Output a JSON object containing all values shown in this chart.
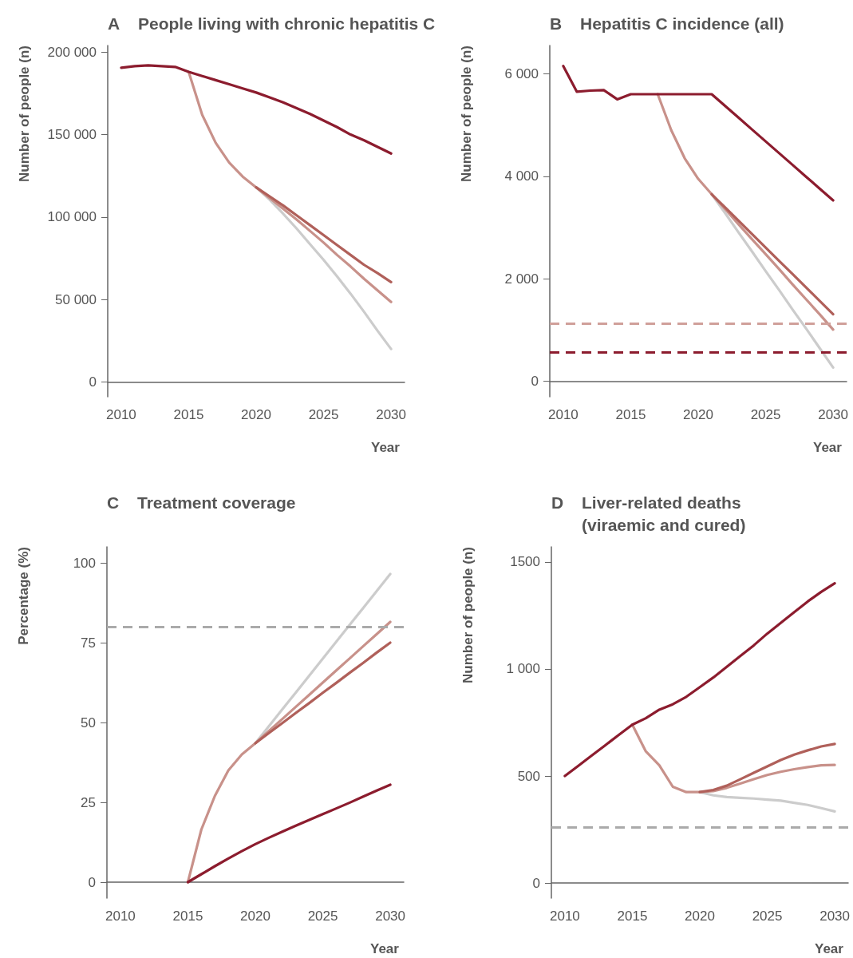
{
  "chart_data": [
    {
      "type": "line",
      "title": "A People living with chronic hepatitis C",
      "xlabel": "Year",
      "ylabel": "Number of people (n)",
      "x": [
        2010,
        2011,
        2012,
        2013,
        2014,
        2015,
        2016,
        2017,
        2018,
        2019,
        2020,
        2021,
        2022,
        2023,
        2024,
        2025,
        2026,
        2027,
        2028,
        2029,
        2030
      ],
      "xlim": [
        2009,
        2031
      ],
      "xticks": [
        2010,
        2015,
        2020,
        2025,
        2030
      ],
      "ylim": [
        -9000,
        204000
      ],
      "yticks": [
        0,
        {
          "value": 50000,
          "label": "50 000"
        },
        {
          "value": 100000,
          "label": "100 000"
        },
        {
          "value": 150000,
          "label": "150 000"
        },
        {
          "value": 200000,
          "label": "200 000"
        }
      ],
      "grid": false,
      "marker": "none",
      "line_style": "solid",
      "series": [
        {
          "color": "#cccccc",
          "values": [
            null,
            null,
            null,
            null,
            null,
            null,
            null,
            null,
            null,
            null,
            118000,
            110500,
            102000,
            93000,
            83500,
            74000,
            64000,
            53500,
            42500,
            31000,
            20000
          ]
        },
        {
          "color": "#c8918a",
          "values": [
            null,
            null,
            null,
            null,
            null,
            188000,
            162000,
            145000,
            133000,
            124500,
            118000,
            111500,
            105000,
            98500,
            91500,
            84500,
            77000,
            70000,
            62500,
            55500,
            48500
          ]
        },
        {
          "color": "#b0605a",
          "values": [
            null,
            null,
            null,
            null,
            null,
            null,
            null,
            null,
            null,
            null,
            118000,
            112500,
            107000,
            101000,
            95000,
            89000,
            83000,
            77000,
            71000,
            66000,
            60500
          ]
        },
        {
          "color": "#8c1c2e",
          "values": [
            190500,
            191500,
            192000,
            191500,
            191000,
            188000,
            185500,
            183000,
            180500,
            178000,
            175500,
            172500,
            169500,
            166000,
            162500,
            158500,
            154500,
            150000,
            146500,
            142500,
            138500
          ]
        }
      ]
    },
    {
      "type": "line",
      "title": "B Hepatitis C incidence (all)",
      "xlabel": "Year",
      "ylabel": "Number of people (n)",
      "x": [
        2010,
        2011,
        2012,
        2013,
        2014,
        2015,
        2016,
        2017,
        2018,
        2019,
        2020,
        2021,
        2022,
        2023,
        2024,
        2025,
        2026,
        2027,
        2028,
        2029,
        2030
      ],
      "xlim": [
        2009,
        2031
      ],
      "xticks": [
        2010,
        2015,
        2020,
        2025,
        2030
      ],
      "ylim": [
        -300,
        6550
      ],
      "yticks": [
        0,
        {
          "value": 2000,
          "label": "2 000"
        },
        {
          "value": 4000,
          "label": "4 000"
        },
        {
          "value": 6000,
          "label": "6 000"
        }
      ],
      "grid": false,
      "marker": "none",
      "line_style": "solid",
      "ref_lines": [
        {
          "axis": "y",
          "value": 1130,
          "color": "#d0a09a",
          "line_style": "dashed"
        },
        {
          "axis": "y",
          "value": 570,
          "color": "#8c1c2e",
          "line_style": "dashed"
        }
      ],
      "series": [
        {
          "color": "#cccccc",
          "values": [
            null,
            null,
            null,
            null,
            null,
            null,
            null,
            null,
            null,
            null,
            null,
            3650,
            3280,
            2900,
            2530,
            2150,
            1780,
            1400,
            1030,
            650,
            270
          ]
        },
        {
          "color": "#c8918a",
          "values": [
            null,
            null,
            null,
            null,
            null,
            null,
            null,
            5600,
            4900,
            4350,
            3950,
            3650,
            3360,
            3060,
            2770,
            2480,
            2190,
            1890,
            1600,
            1310,
            1010
          ]
        },
        {
          "color": "#b0605a",
          "values": [
            null,
            null,
            null,
            null,
            null,
            null,
            null,
            null,
            null,
            null,
            null,
            3650,
            3390,
            3130,
            2870,
            2610,
            2350,
            2090,
            1830,
            1570,
            1310
          ]
        },
        {
          "color": "#8c1c2e",
          "values": [
            6150,
            5650,
            5670,
            5680,
            5500,
            5600,
            5600,
            5600,
            5600,
            5600,
            5600,
            5600,
            5370,
            5140,
            4910,
            4680,
            4450,
            4220,
            3990,
            3760,
            3530
          ]
        }
      ]
    },
    {
      "type": "line",
      "title": "C Treatment coverage",
      "xlabel": "Year",
      "ylabel": "Percentage (%)",
      "x": [
        2015,
        2016,
        2017,
        2018,
        2019,
        2020,
        2021,
        2022,
        2023,
        2024,
        2025,
        2026,
        2027,
        2028,
        2029,
        2030
      ],
      "xlim": [
        2009,
        2031
      ],
      "xticks": [
        2010,
        2015,
        2020,
        2025,
        2030
      ],
      "ylim": [
        -5,
        105
      ],
      "yticks": [
        0,
        25,
        50,
        75,
        100
      ],
      "grid": false,
      "marker": "none",
      "line_style": "solid",
      "ref_lines": [
        {
          "axis": "y",
          "value": 80,
          "color": "#aaaaaa",
          "line_style": "dashed"
        }
      ],
      "series": [
        {
          "color": "#cccccc",
          "values": [
            null,
            null,
            null,
            null,
            null,
            43.5,
            48.8,
            54.1,
            59.4,
            64.7,
            70,
            75.3,
            80.6,
            85.9,
            91.2,
            96.5
          ]
        },
        {
          "color": "#c8918a",
          "values": [
            0,
            16.5,
            27,
            35,
            40,
            43.5,
            47.3,
            51.1,
            54.9,
            58.7,
            62.5,
            66.3,
            70.1,
            73.9,
            77.7,
            81.5
          ]
        },
        {
          "color": "#b0605a",
          "values": [
            null,
            null,
            null,
            null,
            null,
            43.5,
            46.7,
            49.8,
            53,
            56.1,
            59.3,
            62.4,
            65.6,
            68.7,
            71.9,
            75
          ]
        },
        {
          "color": "#8c1c2e",
          "values": [
            0,
            2.5,
            5,
            7.4,
            9.7,
            11.9,
            13.9,
            15.8,
            17.7,
            19.5,
            21.3,
            23.1,
            24.9,
            26.8,
            28.7,
            30.5
          ]
        }
      ]
    },
    {
      "type": "line",
      "title": "D Liver-related deaths\n(viraemic and cured)",
      "xlabel": "Year",
      "ylabel": "Number of people (n)",
      "x": [
        2010,
        2011,
        2012,
        2013,
        2014,
        2015,
        2016,
        2017,
        2018,
        2019,
        2020,
        2021,
        2022,
        2023,
        2024,
        2025,
        2026,
        2027,
        2028,
        2029,
        2030
      ],
      "xlim": [
        2009,
        2031
      ],
      "xticks": [
        2010,
        2015,
        2020,
        2025,
        2030
      ],
      "ylim": [
        -70,
        1570
      ],
      "yticks": [
        0,
        500,
        {
          "value": 1000,
          "label": "1 000"
        },
        1500
      ],
      "grid": false,
      "marker": "none",
      "line_style": "solid",
      "ref_lines": [
        {
          "axis": "y",
          "value": 260,
          "color": "#aaaaaa",
          "line_style": "dashed"
        }
      ],
      "series": [
        {
          "color": "#cccccc",
          "values": [
            null,
            null,
            null,
            null,
            null,
            null,
            null,
            null,
            null,
            null,
            425,
            410,
            402,
            398,
            395,
            390,
            385,
            375,
            365,
            350,
            335
          ]
        },
        {
          "color": "#c8918a",
          "values": [
            null,
            null,
            null,
            null,
            null,
            740,
            615,
            550,
            450,
            425,
            425,
            430,
            445,
            465,
            485,
            505,
            520,
            532,
            542,
            550,
            552
          ]
        },
        {
          "color": "#b0605a",
          "values": [
            null,
            null,
            null,
            null,
            null,
            null,
            null,
            null,
            null,
            null,
            425,
            435,
            455,
            485,
            515,
            545,
            575,
            600,
            620,
            638,
            650
          ]
        },
        {
          "color": "#8c1c2e",
          "values": [
            500,
            548,
            596,
            644,
            692,
            740,
            770,
            810,
            835,
            870,
            915,
            960,
            1010,
            1060,
            1110,
            1165,
            1215,
            1265,
            1315,
            1360,
            1400
          ]
        }
      ]
    }
  ]
}
